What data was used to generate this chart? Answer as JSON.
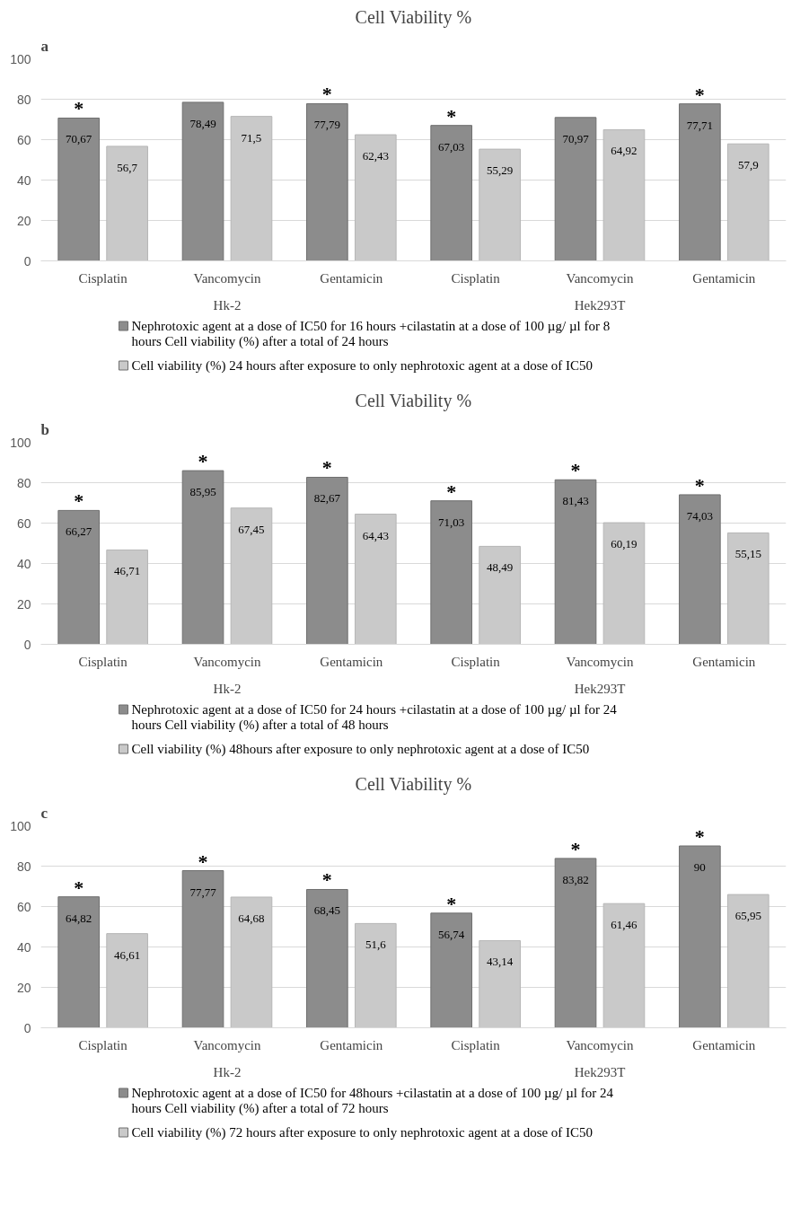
{
  "chart_data": [
    {
      "type": "bar",
      "title": "Cell Viability %",
      "annotations": [
        "a",
        "Hk-2",
        "Hek293T",
        {
          "text": "*",
          "x": "Cisplatin",
          "y": 70.67
        },
        {
          "text": "*",
          "x": "Gentamicin",
          "y": 77.79
        },
        {
          "text": "*",
          "y": 67.03
        },
        {
          "text": "*",
          "y": 77.71
        }
      ],
      "categories": [
        "Cisplatin",
        "Vancomycin",
        "Gentamicin",
        "Cisplatin",
        "Vancomycin",
        "Gentamicin"
      ],
      "series": [
        {
          "name": "Nephrotoxic agent at a dose of IC50 for 16 hours +cilastatin  at a dose of 100 µg/ µl  for 8 hours Cell viability (%)  after a total of 24 hours",
          "color": "#8c8c8c",
          "values": [
            70.67,
            78.49,
            77.79,
            67.03,
            70.97,
            77.71
          ],
          "value_labels": [
            "70,67",
            "78,49",
            "77,79",
            "67,03",
            "70,97",
            "77,71"
          ]
        },
        {
          "name": "Cell viability (%) 24 hours after exposure to only nephrotoxic agent at a dose of IC50",
          "color": "#c9c9c9",
          "values": [
            56.7,
            71.5,
            62.43,
            55.29,
            64.92,
            57.9
          ],
          "value_labels": [
            "56,7",
            "71,5",
            "62,43",
            "55,29",
            "64,92",
            "57,9"
          ]
        }
      ],
      "ylim": [
        0,
        100
      ],
      "yticks": [
        0,
        20,
        40,
        60,
        80,
        100
      ],
      "grid": "y",
      "legend": "bottom"
    },
    {
      "type": "bar",
      "title": "Cell Viability %",
      "annotations": [
        "b",
        "Hk-2",
        "Hek293T",
        {
          "text": "*",
          "x": "Cisplatin",
          "y": 66.27
        },
        {
          "text": "*",
          "x": "Vancomycin",
          "y": 85.95
        },
        {
          "text": "*",
          "x": "Gentamicin",
          "y": 82.67
        },
        {
          "text": "*",
          "y": 71.03
        },
        {
          "text": "*",
          "y": 81.43
        },
        {
          "text": "*",
          "y": 74.03
        }
      ],
      "categories": [
        "Cisplatin",
        "Vancomycin",
        "Gentamicin",
        "Cisplatin",
        "Vancomycin",
        "Gentamicin"
      ],
      "series": [
        {
          "name": "Nephrotoxic agent at a dose of IC50 for 24 hours +cilastatin  at a dose of 100 µg/ µl  for 24 hours Cell viability (%)  after a total of 48 hours",
          "color": "#8c8c8c",
          "values": [
            66.27,
            85.95,
            82.67,
            71.03,
            81.43,
            74.03
          ],
          "value_labels": [
            "66,27",
            "85,95",
            "82,67",
            "71,03",
            "81,43",
            "74,03"
          ]
        },
        {
          "name": "Cell viability (%) 48hours after exposure to only nephrotoxic agent at a dose of IC50",
          "color": "#c9c9c9",
          "values": [
            46.71,
            67.45,
            64.43,
            48.49,
            60.19,
            55.15
          ],
          "value_labels": [
            "46,71",
            "67,45",
            "64,43",
            "48,49",
            "60,19",
            "55,15"
          ]
        }
      ],
      "ylim": [
        0,
        100
      ],
      "yticks": [
        0,
        20,
        40,
        60,
        80,
        100
      ],
      "grid": "y",
      "legend": "bottom"
    },
    {
      "type": "bar",
      "title": "Cell Viability %",
      "annotations": [
        "c",
        "Hk-2",
        "Hek293T",
        {
          "text": "*",
          "x": "Cisplatin",
          "y": 64.82
        },
        {
          "text": "*",
          "x": "Vancomycin",
          "y": 77.77
        },
        {
          "text": "*",
          "x": "Gentamicin",
          "y": 68.45
        },
        {
          "text": "*",
          "y": 56.74
        },
        {
          "text": "*",
          "y": 83.82
        },
        {
          "text": "*",
          "y": 90
        }
      ],
      "categories": [
        "Cisplatin",
        "Vancomycin",
        "Gentamicin",
        "Cisplatin",
        "Vancomycin",
        "Gentamicin"
      ],
      "series": [
        {
          "name": "Nephrotoxic agent at a dose of IC50 for 48hours +cilastatin  at a dose of 100 µg/ µl  for 24 hours Cell viability (%)  after a total of 72 hours",
          "color": "#8c8c8c",
          "values": [
            64.82,
            77.77,
            68.45,
            56.74,
            83.82,
            90
          ],
          "value_labels": [
            "64,82",
            "77,77",
            "68,45",
            "56,74",
            "83,82",
            "90"
          ]
        },
        {
          "name": "Cell viability (%) 72 hours after exposure to only nephrotoxic agent at a dose of IC50",
          "color": "#c9c9c9",
          "values": [
            46.61,
            64.68,
            51.6,
            43.14,
            61.46,
            65.95
          ],
          "value_labels": [
            "46,61",
            "64,68",
            "51,6",
            "43,14",
            "61,46",
            "65,95"
          ]
        }
      ],
      "ylim": [
        0,
        100
      ],
      "yticks": [
        0,
        20,
        40,
        60,
        80,
        100
      ],
      "grid": "y",
      "legend": "bottom"
    }
  ]
}
